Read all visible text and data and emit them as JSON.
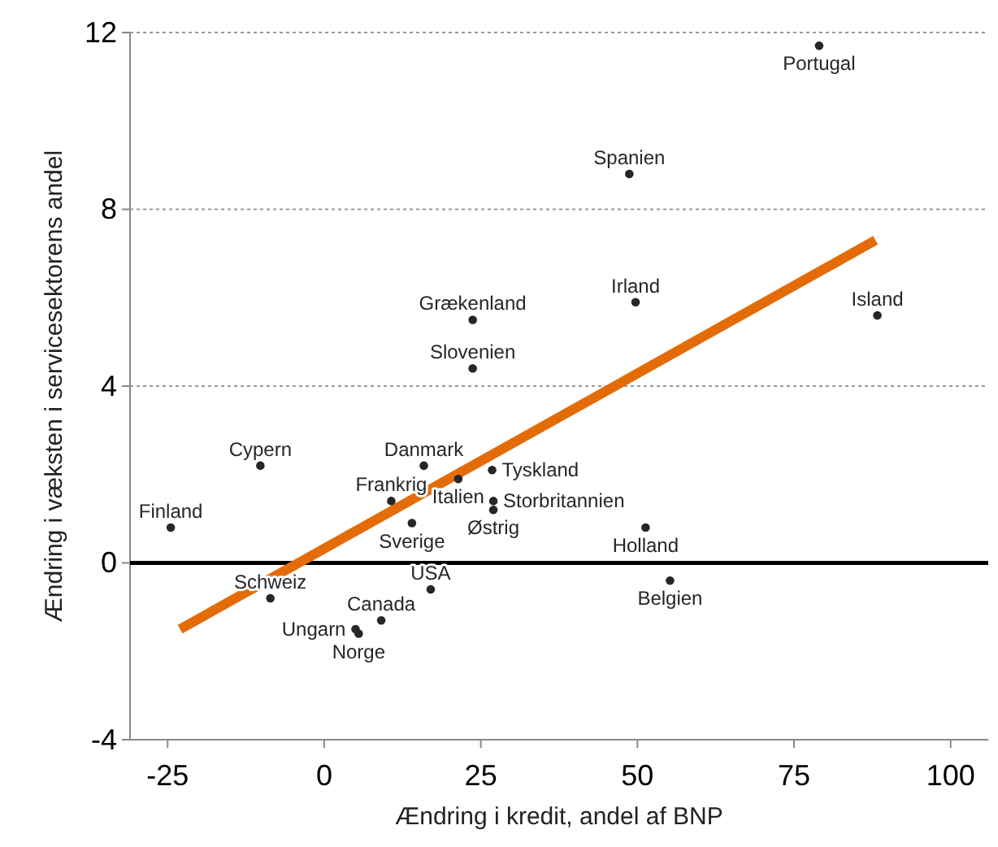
{
  "chart_data": {
    "type": "scatter",
    "xlabel": "Ændring i kredit, andel af BNP",
    "ylabel": "Ændring i væksten i servicesektorens andel",
    "xlim": [
      -31,
      106
    ],
    "xticks": [
      -25,
      0,
      25,
      50,
      75,
      100
    ],
    "ylim": [
      -4,
      12
    ],
    "yticks": [
      -4,
      0,
      4,
      8,
      12
    ],
    "grid": "y",
    "ref_lines": [
      {
        "axis": "y",
        "value": 0,
        "color": "#000000"
      }
    ],
    "series": [
      {
        "name": "Portugal",
        "color": "#262626",
        "marker": "circle",
        "x": [
          79
        ],
        "values": [
          11.7
        ]
      },
      {
        "name": "Spanien",
        "color": "#262626",
        "marker": "circle",
        "x": [
          48.7
        ],
        "values": [
          8.8
        ]
      },
      {
        "name": "Grækenland",
        "color": "#262626",
        "marker": "circle",
        "x": [
          23.7
        ],
        "values": [
          5.5
        ]
      },
      {
        "name": "Irland",
        "color": "#262626",
        "marker": "circle",
        "x": [
          49.7
        ],
        "values": [
          5.9
        ]
      },
      {
        "name": "Island",
        "color": "#262626",
        "marker": "circle",
        "x": [
          88.3
        ],
        "values": [
          5.6
        ]
      },
      {
        "name": "Slovenien",
        "color": "#262626",
        "marker": "circle",
        "x": [
          23.7
        ],
        "values": [
          4.4
        ]
      },
      {
        "name": "Cypern",
        "color": "#262626",
        "marker": "circle",
        "x": [
          -10.2
        ],
        "values": [
          2.2
        ]
      },
      {
        "name": "Danmark",
        "color": "#262626",
        "marker": "circle",
        "x": [
          15.9
        ],
        "values": [
          2.2
        ]
      },
      {
        "name": "Tyskland",
        "color": "#262626",
        "marker": "circle",
        "x": [
          26.8
        ],
        "values": [
          2.1
        ]
      },
      {
        "name": "Italien",
        "color": "#262626",
        "marker": "circle",
        "x": [
          21.4
        ],
        "values": [
          1.9
        ]
      },
      {
        "name": "Frankrig",
        "color": "#262626",
        "marker": "circle",
        "x": [
          10.7
        ],
        "values": [
          1.4
        ]
      },
      {
        "name": "Storbritannien",
        "color": "#262626",
        "marker": "circle",
        "x": [
          27
        ],
        "values": [
          1.4
        ]
      },
      {
        "name": "Østrig",
        "color": "#262626",
        "marker": "circle",
        "x": [
          27
        ],
        "values": [
          1.2
        ]
      },
      {
        "name": "Sverige",
        "color": "#262626",
        "marker": "circle",
        "x": [
          14
        ],
        "values": [
          0.9
        ]
      },
      {
        "name": "Finland",
        "color": "#262626",
        "marker": "circle",
        "x": [
          -24.5
        ],
        "values": [
          0.8
        ]
      },
      {
        "name": "Holland",
        "color": "#262626",
        "marker": "circle",
        "x": [
          51.3
        ],
        "values": [
          0.8
        ]
      },
      {
        "name": "Belgien",
        "color": "#262626",
        "marker": "circle",
        "x": [
          55.2
        ],
        "values": [
          -0.4
        ]
      },
      {
        "name": "Schweiz",
        "color": "#262626",
        "marker": "circle",
        "x": [
          -8.6
        ],
        "values": [
          -0.8
        ]
      },
      {
        "name": "USA",
        "color": "#262626",
        "marker": "circle",
        "x": [
          17
        ],
        "values": [
          -0.6
        ]
      },
      {
        "name": "Ungarn",
        "color": "#262626",
        "marker": "circle",
        "x": [
          5
        ],
        "values": [
          -1.5
        ]
      },
      {
        "name": "Canada",
        "color": "#262626",
        "marker": "circle",
        "x": [
          9.1
        ],
        "values": [
          -1.3
        ]
      },
      {
        "name": "Norge",
        "color": "#262626",
        "marker": "circle",
        "x": [
          5.5
        ],
        "values": [
          -1.6
        ]
      },
      {
        "type": "line",
        "color": "#e36c09",
        "x": [
          -23,
          88
        ],
        "values": [
          -1.5,
          7.3
        ]
      }
    ]
  }
}
